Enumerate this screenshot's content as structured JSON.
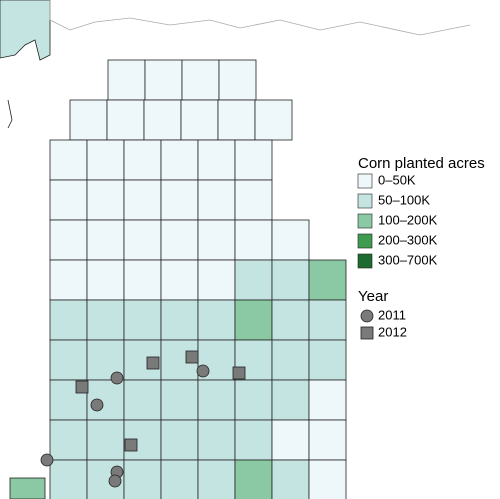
{
  "legend": {
    "title": "Corn planted acres",
    "items": [
      {
        "label": "0–50K",
        "color": "#eef7f9"
      },
      {
        "label": "50–100K",
        "color": "#c4e4e2"
      },
      {
        "label": "100–200K",
        "color": "#8ac9a4"
      },
      {
        "label": "200–300K",
        "color": "#3f9b50"
      },
      {
        "label": "300–700K",
        "color": "#1c6b2f"
      }
    ],
    "year_title": "Year",
    "years": [
      "2011",
      "2012"
    ]
  }
}
